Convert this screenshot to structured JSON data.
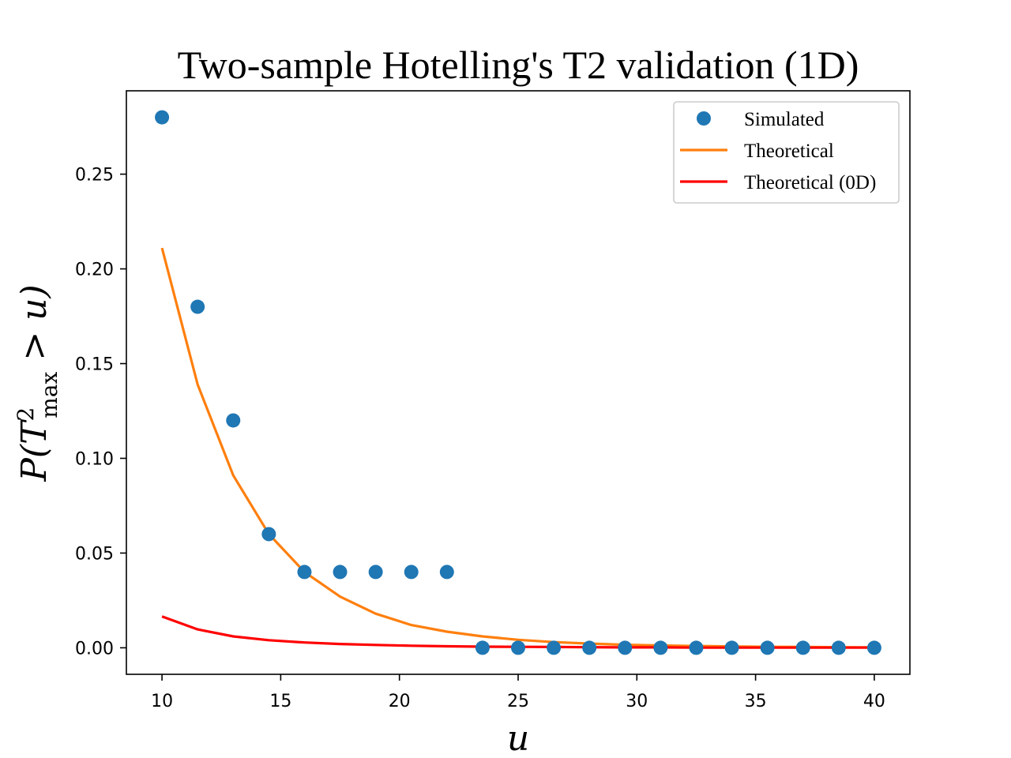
{
  "chart_data": {
    "type": "scatter",
    "title": "Two-sample Hotelling's T2 validation (1D)",
    "xlabel": "u",
    "ylabel": {
      "prefix": "P(",
      "T": "T",
      "sup": "2",
      "sub": "max",
      "suffix": " > u)"
    },
    "xlim": [
      8.5,
      41.5
    ],
    "ylim": [
      -0.014,
      0.294
    ],
    "xticks": [
      10,
      15,
      20,
      25,
      30,
      35,
      40
    ],
    "yticks": [
      0.0,
      0.05,
      0.1,
      0.15,
      0.2,
      0.25
    ],
    "x": [
      10,
      11.5,
      13,
      14.5,
      16,
      17.5,
      19,
      20.5,
      22,
      23.5,
      25,
      26.5,
      28,
      29.5,
      31,
      32.5,
      34,
      35.5,
      37,
      38.5,
      40
    ],
    "series": [
      {
        "name": "Simulated",
        "kind": "marker",
        "color": "#1f77b4",
        "values": [
          0.28,
          0.18,
          0.12,
          0.06,
          0.04,
          0.04,
          0.04,
          0.04,
          0.04,
          0,
          0,
          0,
          0,
          0,
          0,
          0,
          0,
          0,
          0,
          0,
          0
        ]
      },
      {
        "name": "Theoretical",
        "kind": "line",
        "color": "#ff7f0e",
        "values": [
          0.211,
          0.139,
          0.091,
          0.06,
          0.04,
          0.027,
          0.018,
          0.012,
          0.0085,
          0.006,
          0.0042,
          0.003,
          0.0022,
          0.0016,
          0.0012,
          0.0009,
          0.0007,
          0.0005,
          0.0004,
          0.0003,
          0.0002
        ]
      },
      {
        "name": "Theoretical (0D)",
        "kind": "line",
        "color": "#ff0000",
        "values": [
          0.0165,
          0.0097,
          0.006,
          0.004,
          0.0028,
          0.002,
          0.0015,
          0.0011,
          0.0008,
          0.0006,
          0.0005,
          0.0004,
          0.0003,
          0.0002,
          0.0002,
          0.0001,
          0.0001,
          0.0001,
          0.0001,
          0.0001,
          0.0001
        ]
      }
    ],
    "legend": {
      "position": "top-right",
      "entries": [
        "Simulated",
        "Theoretical",
        "Theoretical (0D)"
      ]
    },
    "grid": false
  }
}
